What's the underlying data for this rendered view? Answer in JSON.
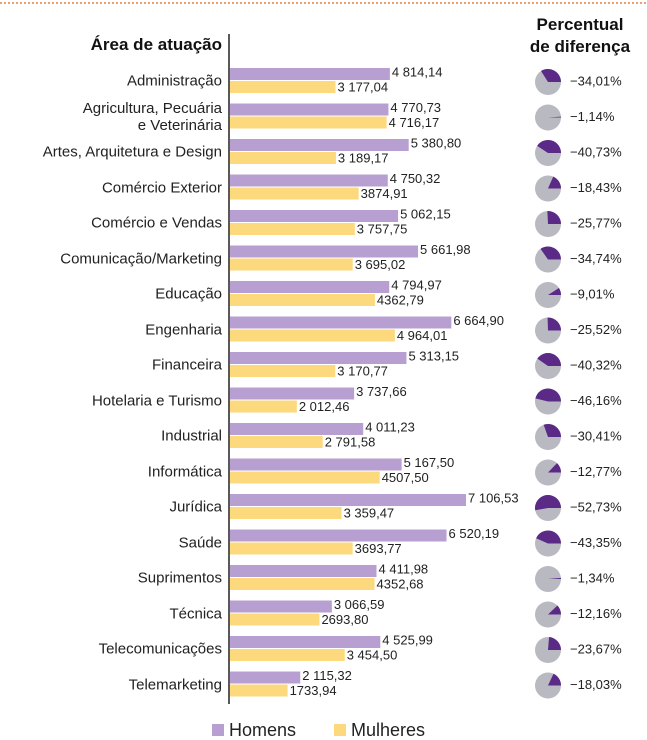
{
  "chart_data": {
    "type": "bar",
    "orientation": "horizontal",
    "ylabel": "Área de atuação",
    "categories": [
      "Administração",
      "Agricultura, Pecuária\ne Veterinária",
      "Artes, Arquitetura e Design",
      "Comércio Exterior",
      "Comércio e Vendas",
      "Comunicação/Marketing",
      "Educação",
      "Engenharia",
      "Financeira",
      "Hotelaria e Turismo",
      "Industrial",
      "Informática",
      "Jurídica",
      "Saúde",
      "Suprimentos",
      "Técnica",
      "Telecomunicações",
      "Telemarketing"
    ],
    "series": [
      {
        "name": "Homens",
        "color": "#b89fd1",
        "values": [
          4814.14,
          4770.73,
          5380.8,
          4750.32,
          5062.15,
          5661.98,
          4794.97,
          6664.9,
          5313.15,
          3737.66,
          4011.23,
          5167.5,
          7106.53,
          6520.19,
          4411.98,
          3066.59,
          4525.99,
          2115.32
        ],
        "value_labels": [
          "4 814,14",
          "4 770,73",
          "5 380,80",
          "4 750,32",
          "5 062,15",
          "5 661,98",
          "4 794,97",
          "6 664,90",
          "5 313,15",
          "3 737,66",
          "4 011,23",
          "5 167,50",
          "7 106,53",
          "6 520,19",
          "4 411,98",
          "3 066,59",
          "4 525,99",
          "2 115,32"
        ]
      },
      {
        "name": "Mulheres",
        "color": "#fcd97c",
        "values": [
          3177.04,
          4716.17,
          3189.17,
          3874.91,
          3757.75,
          3695.02,
          4362.79,
          4964.01,
          3170.77,
          2012.46,
          2791.58,
          4507.5,
          3359.47,
          3693.77,
          4352.68,
          2693.8,
          3454.5,
          1733.94
        ],
        "value_labels": [
          "3 177,04",
          "4 716,17",
          "3 189,17",
          "3874,91",
          "3 757,75",
          "3 695,02",
          "4362,79",
          "4 964,01",
          "3 170,77",
          "2 012,46",
          "2 791,58",
          "4507,50",
          "3 359,47",
          "3693,77",
          "4352,68",
          "2693,80",
          "3 454,50",
          "1733,94"
        ]
      }
    ],
    "difference": {
      "title": "Percentual\nde diferença",
      "color": "#5a2a86",
      "values": [
        -34.01,
        -1.14,
        -40.73,
        -18.43,
        -25.77,
        -34.74,
        -9.01,
        -25.52,
        -40.32,
        -46.16,
        -30.41,
        -12.77,
        -52.73,
        -43.35,
        -1.34,
        -12.16,
        -23.67,
        -18.03
      ],
      "value_labels": [
        "−34,01%",
        "−1,14%",
        "−40,73%",
        "−18,43%",
        "−25,77%",
        "−34,74%",
        "−9,01%",
        "−25,52%",
        "−40,32%",
        "−46,16%",
        "−30,41%",
        "−12,77%",
        "−52,73%",
        "−43,35%",
        "−1,34%",
        "−12,16%",
        "−23,67%",
        "−18,03%"
      ]
    },
    "legend": "bottom"
  }
}
